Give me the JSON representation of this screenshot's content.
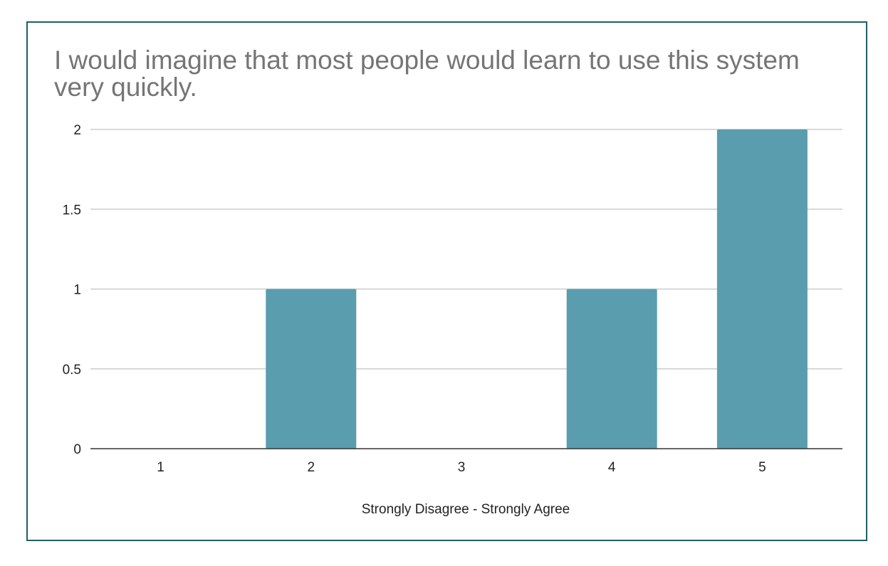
{
  "chart_data": {
    "type": "bar",
    "title": "I would imagine that most people would learn to use this system very quickly.",
    "xlabel": "Strongly Disagree - Strongly Agree",
    "ylabel": "",
    "categories": [
      "1",
      "2",
      "3",
      "4",
      "5"
    ],
    "values": [
      0,
      1,
      0,
      1,
      2
    ],
    "ylim": [
      0,
      2
    ],
    "yticks": [
      0,
      0.5,
      1,
      1.5,
      2
    ],
    "ytick_labels": [
      "0",
      "0.5",
      "1",
      "1.5",
      "2"
    ],
    "grid": true,
    "legend": "none",
    "bar_color": "#599dae",
    "title_color": "#757575",
    "border_color": "#1f5f6a"
  }
}
